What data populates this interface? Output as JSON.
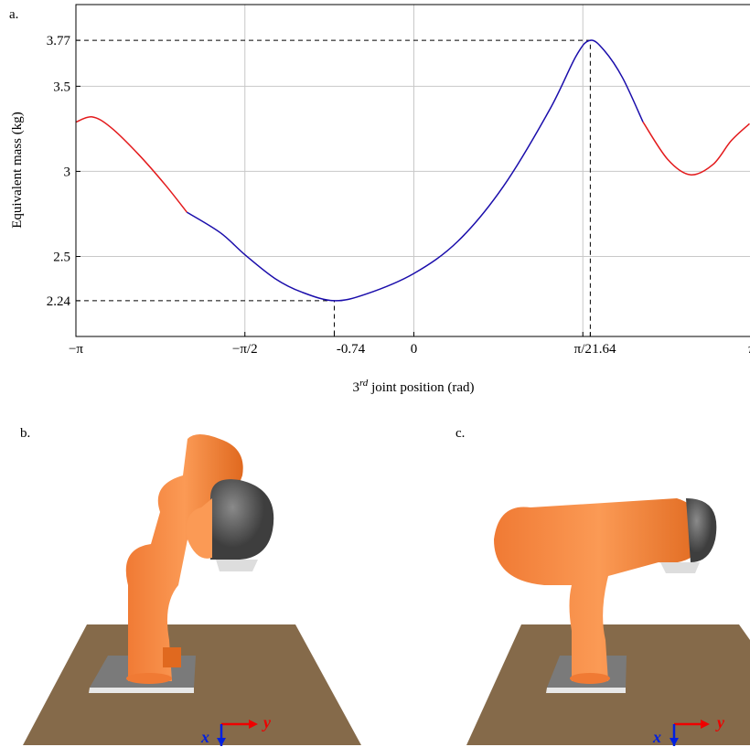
{
  "chart_data": {
    "type": "line",
    "panel_label": "a.",
    "ylabel": "Equivalent mass (kg)",
    "xlabel": {
      "base": "3",
      "sup": "rd",
      "rest": " joint position (rad)"
    },
    "xlim": [
      -3.1416,
      3.1416
    ],
    "ylim": [
      2.03,
      3.98
    ],
    "xticks": [
      {
        "value": -3.1416,
        "label": "−π"
      },
      {
        "value": -1.5708,
        "label": "−π/2"
      },
      -0.74,
      0,
      {
        "value": 1.5708,
        "label": "π/2"
      },
      1.64,
      {
        "value": 3.1416,
        "label": "π"
      }
    ],
    "yticks": [
      2.24,
      2.5,
      3,
      3.5,
      3.77
    ],
    "xgrid": [
      -1.5708,
      0,
      1.5708
    ],
    "ygrid": [
      2.5,
      3,
      3.5
    ],
    "min_point": {
      "x": -0.74,
      "y": 2.24
    },
    "max_point": {
      "x": 1.64,
      "y": 3.77
    },
    "series": [
      {
        "color": "#e31a1c",
        "x": [
          -3.14,
          -2.99,
          -2.82,
          -2.56,
          -2.31,
          -2.11
        ],
        "values": [
          3.29,
          3.32,
          3.26,
          3.1,
          2.92,
          2.76
        ]
      },
      {
        "color": "#1a0dab",
        "x": [
          -2.11,
          -1.8,
          -1.57,
          -1.29,
          -1.04,
          -0.74,
          -0.44,
          0,
          0.41,
          0.83,
          1.26,
          1.51,
          1.64,
          1.77,
          1.94,
          2.13
        ],
        "values": [
          2.76,
          2.64,
          2.51,
          2.37,
          2.29,
          2.24,
          2.28,
          2.4,
          2.59,
          2.91,
          3.36,
          3.68,
          3.77,
          3.71,
          3.55,
          3.29
        ]
      },
      {
        "color": "#e31a1c",
        "x": [
          2.13,
          2.36,
          2.57,
          2.78,
          2.95,
          3.12
        ],
        "values": [
          3.29,
          3.07,
          2.98,
          3.04,
          3.18,
          3.28
        ]
      }
    ]
  },
  "panels": [
    {
      "label": "b.",
      "axis_x": "x",
      "axis_y": "y"
    },
    {
      "label": "c.",
      "axis_x": "x",
      "axis_y": "y"
    }
  ]
}
